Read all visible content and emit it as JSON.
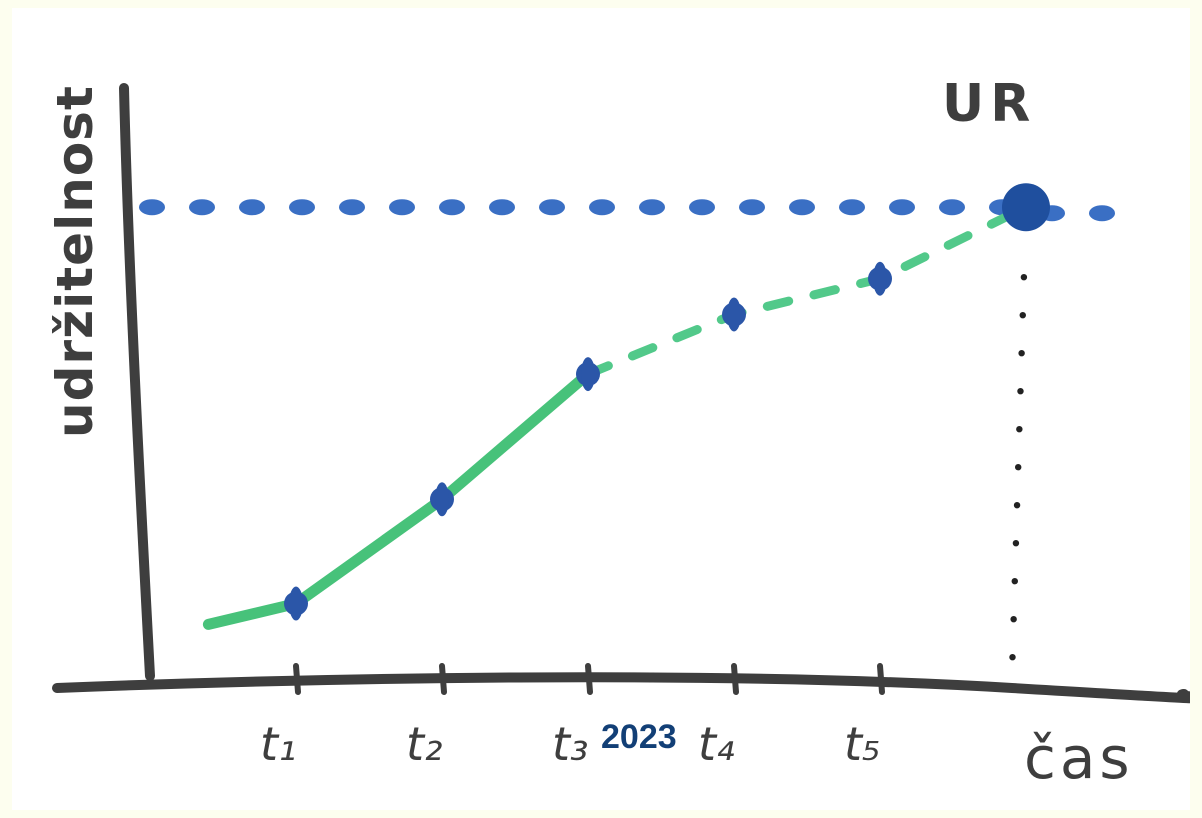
{
  "chart_data": {
    "type": "line",
    "ylabel": "udržitelnost",
    "xlabel": "čas",
    "tick_labels": [
      "t₁",
      "t₂",
      "t₃",
      "t₄",
      "t₅"
    ],
    "target_label": "UR",
    "target_year_label": "2023",
    "colors": {
      "axis": "#3e3e3e",
      "target_line": "#3a6fc4",
      "actual_line": "#47c27a",
      "planned_line": "#52c98a",
      "points": "#2b56a8",
      "year_label": "#123f76"
    },
    "xlim": [
      0,
      7
    ],
    "ylim": [
      0,
      1
    ],
    "target_level": 0.8,
    "actual": [
      {
        "x": 0.4,
        "y": 0.1
      },
      {
        "x": 1,
        "y": 0.135
      },
      {
        "x": 2,
        "y": 0.31
      },
      {
        "x": 3,
        "y": 0.52
      }
    ],
    "planned": [
      {
        "x": 3,
        "y": 0.52
      },
      {
        "x": 4,
        "y": 0.62
      },
      {
        "x": 5,
        "y": 0.68
      },
      {
        "x": 6,
        "y": 0.8
      }
    ],
    "points": [
      {
        "x": 1,
        "y": 0.135
      },
      {
        "x": 2,
        "y": 0.31
      },
      {
        "x": 3,
        "y": 0.52
      },
      {
        "x": 4,
        "y": 0.62
      },
      {
        "x": 5,
        "y": 0.68
      }
    ],
    "target_point": {
      "x": 6,
      "y": 0.8
    },
    "grid": false
  }
}
